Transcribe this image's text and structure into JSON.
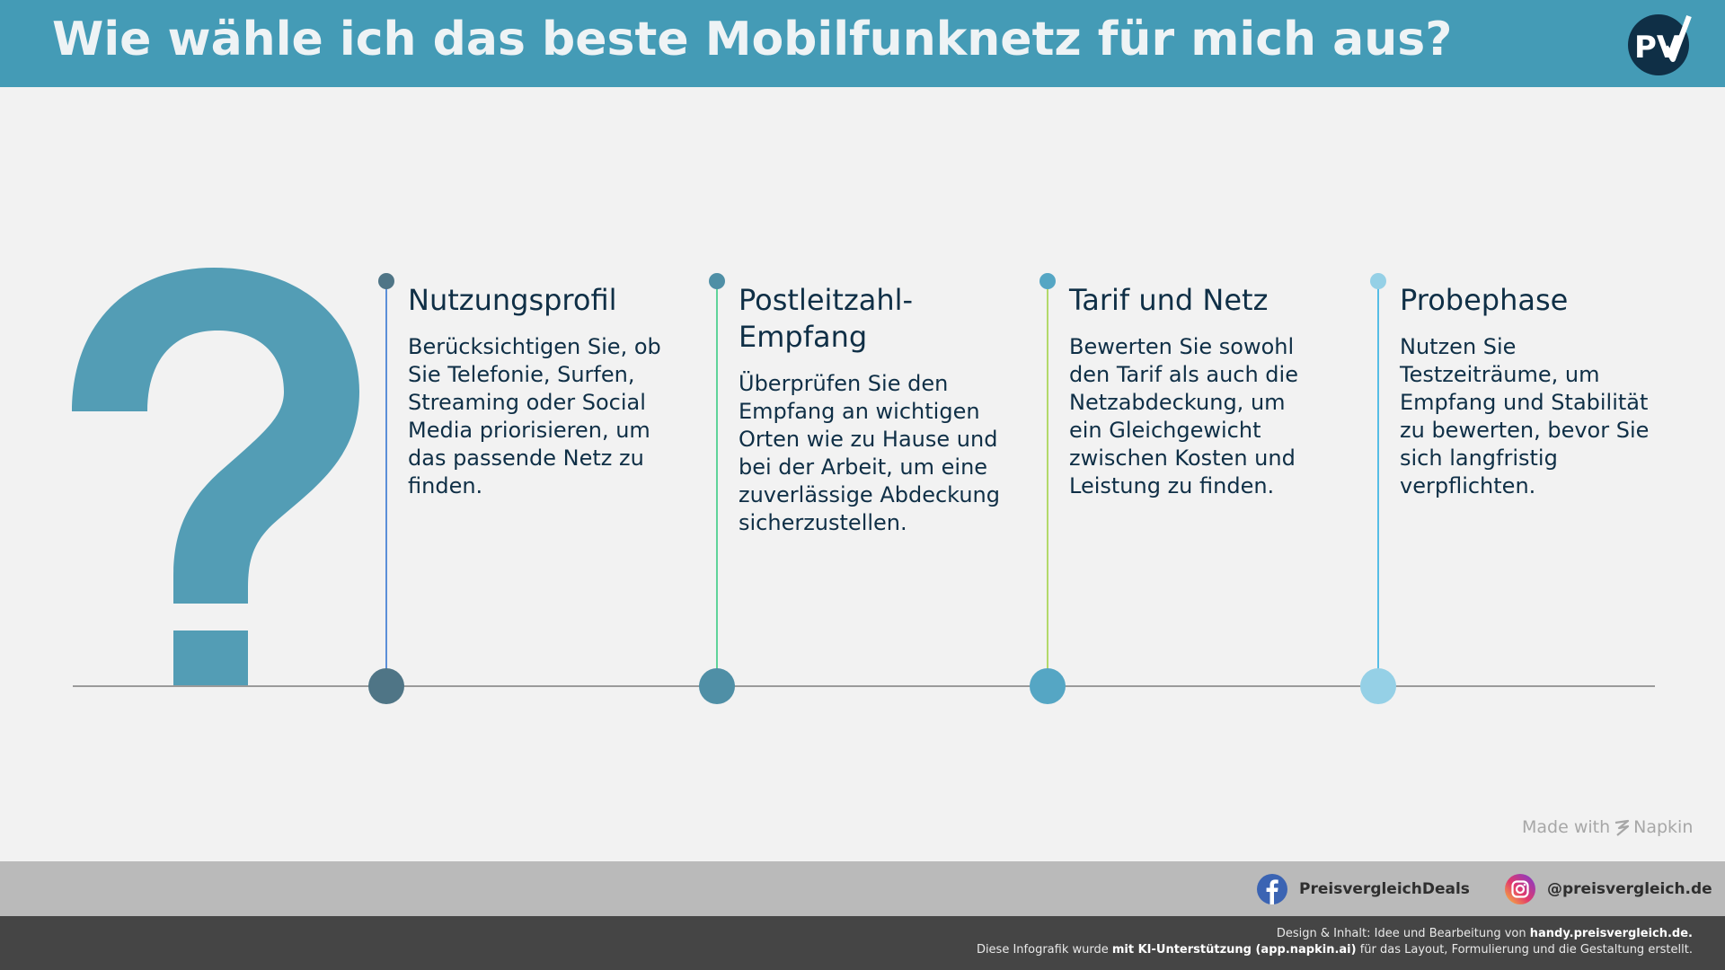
{
  "header": {
    "title": "Wie wähle ich das beste Mobilfunknetz für mich aus?",
    "logo_text": "PV",
    "bg_color": "#449bb6"
  },
  "illustration": {
    "icon": "question-mark-icon",
    "color": "#539db5"
  },
  "steps": [
    {
      "title": "Nutzungsprofil",
      "text": "Berücksichtigen Sie, ob Sie Telefonie, Surfen, Streaming oder Social Media priorisieren, um das passende Netz zu finden.",
      "dot_color": "#4f7586",
      "line_color": "#5b8fd8"
    },
    {
      "title": "Postleitzahl-Empfang",
      "text": "Überprüfen Sie den Empfang an wichtigen Orten wie zu Hause und bei der Arbeit, um eine zuverlässige Abdeckung sicherzustellen.",
      "dot_color": "#4f8fa6",
      "line_color": "#5fd39a"
    },
    {
      "title": "Tarif und Netz",
      "text": "Bewerten Sie sowohl den Tarif als auch die Netzabdeckung, um ein Gleichgewicht zwischen Kosten und Leistung zu finden.",
      "dot_color": "#55a6c4",
      "line_color": "#b3d96a"
    },
    {
      "title": "Probephase",
      "text": "Nutzen Sie Testzeiträume, um Empfang und Stabilität zu bewerten, bevor Sie sich langfristig verpflichten.",
      "dot_color": "#95d0e6",
      "line_color": "#56bde6"
    }
  ],
  "watermark": {
    "made_with": "Made with",
    "brand": "Napkin"
  },
  "social": {
    "facebook": {
      "icon": "facebook-icon",
      "handle": "PreisvergleichDeals"
    },
    "instagram": {
      "icon": "instagram-icon",
      "handle": "@preisvergleich.de"
    }
  },
  "footer": {
    "line1_prefix": "Design & Inhalt: Idee und Bearbeitung von ",
    "line1_bold": "handy.preisvergleich.de.",
    "line2_prefix": "Diese Infografik wurde ",
    "line2_bold": "mit KI-Unterstützung (app.napkin.ai)",
    "line2_suffix": " für das Layout, Formulierung und die Gestaltung erstellt."
  }
}
